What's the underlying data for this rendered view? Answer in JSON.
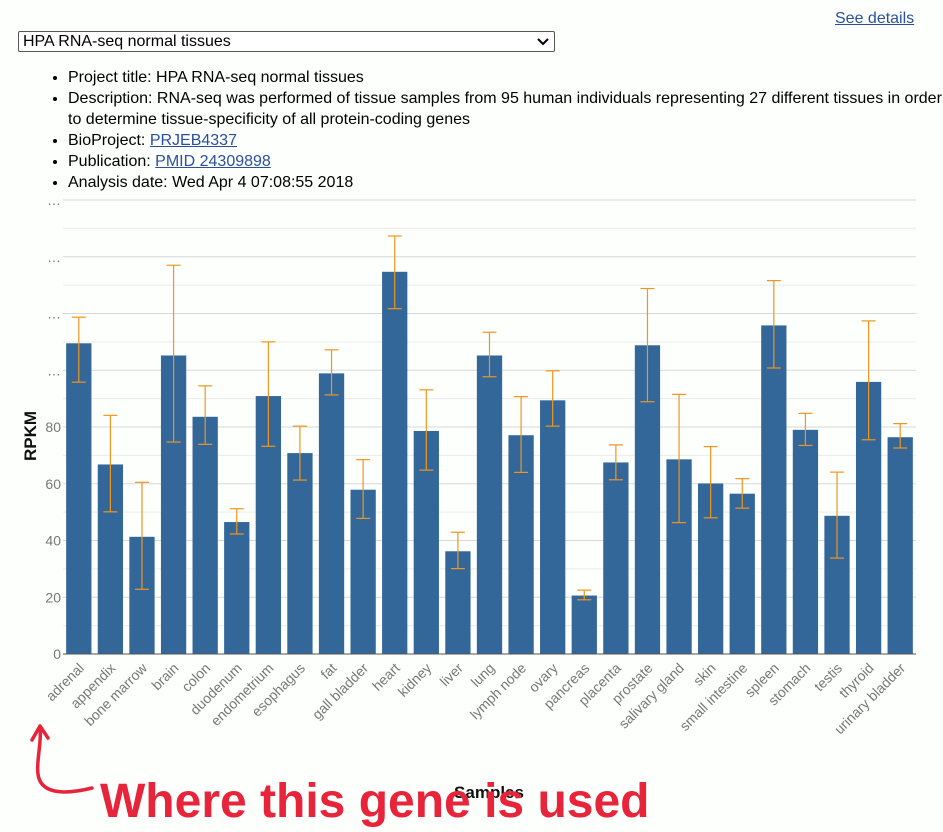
{
  "header": {
    "see_details": "See details"
  },
  "select": {
    "value": "HPA RNA-seq normal tissues"
  },
  "info": {
    "project_label": "Project title: ",
    "project_value": "HPA RNA-seq normal tissues",
    "desc_label": "Description: ",
    "desc_value": "RNA-seq was performed of tissue samples from 95 human individuals representing 27 different tissues in order to determine tissue-specificity of all protein-coding genes",
    "bioproject_label": "BioProject: ",
    "bioproject_link": "PRJEB4337",
    "publication_label": "Publication: ",
    "publication_link": "PMID 24309898",
    "date_label": "Analysis date: ",
    "date_value": "Wed Apr 4 07:08:55 2018"
  },
  "chart_data": {
    "type": "bar",
    "xlabel": "Samples",
    "ylabel": "RPKM",
    "ylim": [
      0,
      160
    ],
    "y_ticks": [
      0,
      20,
      40,
      60,
      80
    ],
    "y_ticks_truncated_label": "…",
    "y_ticks_truncated_values": [
      100,
      120,
      140,
      160
    ],
    "grid": true,
    "bar_color": "#336699",
    "error_color": "#f0961e",
    "categories": [
      "adrenal",
      "appendix",
      "bone marrow",
      "brain",
      "colon",
      "duodenum",
      "endometrium",
      "esophagus",
      "fat",
      "gall bladder",
      "heart",
      "kidney",
      "liver",
      "lung",
      "lymph node",
      "ovary",
      "pancreas",
      "placenta",
      "prostate",
      "salivary gland",
      "skin",
      "small intestine",
      "spleen",
      "stomach",
      "testis",
      "thyroid",
      "urinary bladder"
    ],
    "values": [
      109.5,
      66.8,
      41.3,
      105.2,
      83.6,
      46.5,
      90.9,
      70.8,
      98.9,
      57.9,
      134.7,
      78.6,
      36.2,
      105.2,
      77.1,
      89.4,
      20.6,
      67.5,
      108.8,
      68.6,
      60.1,
      56.5,
      115.8,
      79.0,
      48.7,
      95.9,
      76.4
    ],
    "err_low": [
      95.8,
      50.1,
      22.8,
      74.7,
      73.9,
      42.3,
      73.2,
      61.3,
      91.3,
      47.8,
      121.7,
      64.8,
      30.1,
      97.7,
      64.0,
      80.3,
      19.1,
      61.4,
      88.9,
      46.3,
      48.0,
      51.4,
      100.8,
      73.5,
      33.8,
      75.5,
      72.6
    ],
    "err_high": [
      118.7,
      84.1,
      60.5,
      137.0,
      94.5,
      51.2,
      110.0,
      80.3,
      107.2,
      68.5,
      147.3,
      93.1,
      42.9,
      113.4,
      90.7,
      99.8,
      22.5,
      73.7,
      128.8,
      91.5,
      73.1,
      61.8,
      131.6,
      84.8,
      64.1,
      117.4,
      81.2
    ]
  },
  "annotation": {
    "text": "Where this gene is used"
  }
}
